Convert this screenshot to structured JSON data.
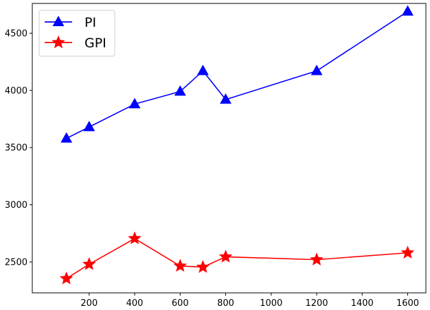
{
  "chart_data": {
    "type": "line",
    "title": "",
    "xlabel": "",
    "ylabel": "",
    "x": [
      100,
      200,
      400,
      600,
      700,
      800,
      1200,
      1600
    ],
    "xlim": [
      -50,
      1680
    ],
    "ylim": [
      2230,
      4760
    ],
    "xticks": [
      200,
      400,
      600,
      800,
      1000,
      1200,
      1400,
      1600
    ],
    "yticks": [
      2500,
      3000,
      3500,
      4000,
      4500
    ],
    "grid": false,
    "legend_position": "top-left",
    "series": [
      {
        "name": "PI",
        "color": "#0000ff",
        "marker": "triangle-up",
        "values": [
          3580,
          3680,
          3880,
          3990,
          4170,
          3920,
          4170,
          4690
        ]
      },
      {
        "name": "GPI",
        "color": "#ff0000",
        "marker": "star",
        "values": [
          2355,
          2480,
          2705,
          2465,
          2455,
          2545,
          2520,
          2580
        ]
      }
    ]
  }
}
